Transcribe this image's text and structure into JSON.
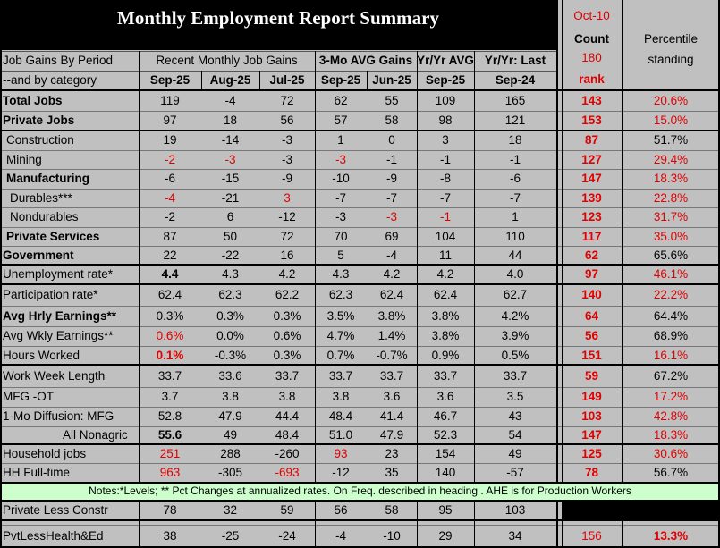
{
  "title": "Monthly Employment Report Summary",
  "side_header": {
    "date": "Oct-10",
    "count": "Count",
    "n": "180",
    "rank": "rank",
    "percentile": [
      "Percentile",
      "standing"
    ]
  },
  "header": {
    "row1_label": "Job Gains By Period",
    "row2_label": "--and by category",
    "groups": [
      {
        "text": "Recent Monthly Job Gains",
        "bold": false
      },
      {
        "text": "3-Mo AVG Gains",
        "bold": true
      },
      {
        "text": "Yr/Yr AVG",
        "bold": true
      },
      {
        "text": "Yr/Yr: Last",
        "bold": true
      }
    ],
    "dates": [
      "Sep-25",
      "Aug-25",
      "Jul-25",
      "Sep-25",
      "Jun-25",
      "Sep-25",
      "Sep-24"
    ]
  },
  "rows": [
    {
      "label": "Total Jobs",
      "bold": true,
      "values": [
        "119",
        "-4",
        "72",
        "62",
        "55",
        "109",
        "165"
      ],
      "red": [],
      "rank": "143",
      "percentile": "20.6%",
      "pct_red": true
    },
    {
      "label": "Private Jobs",
      "bold": true,
      "values": [
        "97",
        "18",
        "56",
        "57",
        "58",
        "98",
        "121"
      ],
      "red": [],
      "rank": "153",
      "percentile": "15.0%",
      "pct_red": true
    },
    {
      "label": "Construction",
      "values": [
        "19",
        "-14",
        "-3",
        "1",
        "0",
        "3",
        "18"
      ],
      "red": [],
      "rank": "87",
      "percentile": "51.7%",
      "pct_red": false
    },
    {
      "label": "Mining",
      "values": [
        "-2",
        "-3",
        "-3",
        "-3",
        "-1",
        "-1",
        "-1"
      ],
      "red": [
        0,
        1,
        3
      ],
      "rank": "127",
      "percentile": "29.4%",
      "pct_red": true
    },
    {
      "label": "Manufacturing",
      "bold": true,
      "values": [
        "-6",
        "-15",
        "-9",
        "-10",
        "-9",
        "-8",
        "-6"
      ],
      "red": [],
      "rank": "147",
      "percentile": "18.3%",
      "pct_red": true
    },
    {
      "label": "Durables***",
      "values": [
        "-4",
        "-21",
        "3",
        "-7",
        "-7",
        "-7",
        "-7"
      ],
      "red": [
        0,
        2
      ],
      "rank": "139",
      "percentile": "22.8%",
      "pct_red": true
    },
    {
      "label": "Nondurables",
      "values": [
        "-2",
        "6",
        "-12",
        "-3",
        "-3",
        "-1",
        "1"
      ],
      "red": [
        4,
        5
      ],
      "rank": "123",
      "percentile": "31.7%",
      "pct_red": true
    },
    {
      "label": "Private Services",
      "bold": true,
      "values": [
        "87",
        "50",
        "72",
        "70",
        "69",
        "104",
        "110"
      ],
      "red": [],
      "rank": "117",
      "percentile": "35.0%",
      "pct_red": true
    },
    {
      "label": "Government",
      "bold": true,
      "values": [
        "22",
        "-22",
        "16",
        "5",
        "-4",
        "11",
        "44"
      ],
      "red": [],
      "rank": "62",
      "percentile": "65.6%",
      "pct_red": false
    },
    {
      "label": "Unemployment rate*",
      "values": [
        "4.4",
        "4.3",
        "4.2",
        "4.3",
        "4.2",
        "4.2",
        "4.0"
      ],
      "red": [],
      "bold_values": [
        0
      ],
      "rank": "97",
      "percentile": "46.1%",
      "pct_red": true
    },
    {
      "label": "Participation rate*",
      "values": [
        "62.4",
        "62.3",
        "62.2",
        "62.3",
        "62.4",
        "62.4",
        "62.7"
      ],
      "red": [],
      "rank": "140",
      "percentile": "22.2%",
      "pct_red": true
    },
    {
      "label": "Avg Hrly Earnings**",
      "bold": true,
      "values": [
        "0.3%",
        "0.3%",
        "0.3%",
        "3.5%",
        "3.8%",
        "3.8%",
        "4.2%"
      ],
      "red": [],
      "rank": "64",
      "percentile": "64.4%",
      "pct_red": false
    },
    {
      "label": "Avg Wkly Earnings**",
      "values": [
        "0.6%",
        "0.0%",
        "0.6%",
        "4.7%",
        "1.4%",
        "3.8%",
        "3.9%"
      ],
      "red": [
        0
      ],
      "rank": "56",
      "percentile": "68.9%",
      "pct_red": false
    },
    {
      "label": "Hours Worked",
      "values": [
        "0.1%",
        "-0.3%",
        "0.3%",
        "0.7%",
        "-0.7%",
        "0.9%",
        "0.5%"
      ],
      "red": [
        0
      ],
      "bold_values": [
        0
      ],
      "rank": "151",
      "percentile": "16.1%",
      "pct_red": true
    },
    {
      "label": "Work Week Length",
      "values": [
        "33.7",
        "33.6",
        "33.7",
        "33.7",
        "33.7",
        "33.7",
        "33.7"
      ],
      "red": [],
      "rank": "59",
      "percentile": "67.2%",
      "pct_red": false
    },
    {
      "label": "MFG -OT",
      "values": [
        "3.7",
        "3.8",
        "3.8",
        "3.8",
        "3.6",
        "3.6",
        "3.5"
      ],
      "red": [],
      "rank": "149",
      "percentile": "17.2%",
      "pct_red": true
    },
    {
      "label": "1-Mo Diffusion: MFG",
      "values": [
        "52.8",
        "47.9",
        "44.4",
        "48.4",
        "41.4",
        "46.7",
        "43"
      ],
      "red": [],
      "rank": "103",
      "percentile": "42.8%",
      "pct_red": true
    },
    {
      "label": "All Nonagric",
      "values": [
        "55.6",
        "49",
        "48.4",
        "51.0",
        "47.9",
        "52.3",
        "54"
      ],
      "red": [],
      "bold_values": [
        0
      ],
      "rank": "147",
      "percentile": "18.3%",
      "pct_red": true
    },
    {
      "label": "Household jobs",
      "values": [
        "251",
        "288",
        "-260",
        "93",
        "23",
        "154",
        "49"
      ],
      "red": [
        0,
        3
      ],
      "rank": "125",
      "percentile": "30.6%",
      "pct_red": true
    },
    {
      "label": "HH Full-time",
      "values": [
        "963",
        "-305",
        "-693",
        "-12",
        "35",
        "140",
        "-57"
      ],
      "red": [
        0,
        2
      ],
      "rank": "78",
      "percentile": "56.7%",
      "pct_red": false
    },
    {
      "label": "Private Less Constr",
      "values": [
        "78",
        "32",
        "59",
        "56",
        "58",
        "95",
        "103"
      ],
      "red": []
    },
    {
      "label": "PvtLessHealth&Ed",
      "values": [
        "38",
        "-25",
        "-24",
        "-4",
        "-10",
        "29",
        "34"
      ],
      "red": [],
      "rank": "156",
      "rank_bold": false,
      "percentile": "13.3%",
      "pct_red": true,
      "pct_bold": true
    }
  ],
  "notes": "Notes:*Levels; ** Pct Changes at annualized rates. On Freq. described in heading . AHE is for Production Workers"
}
